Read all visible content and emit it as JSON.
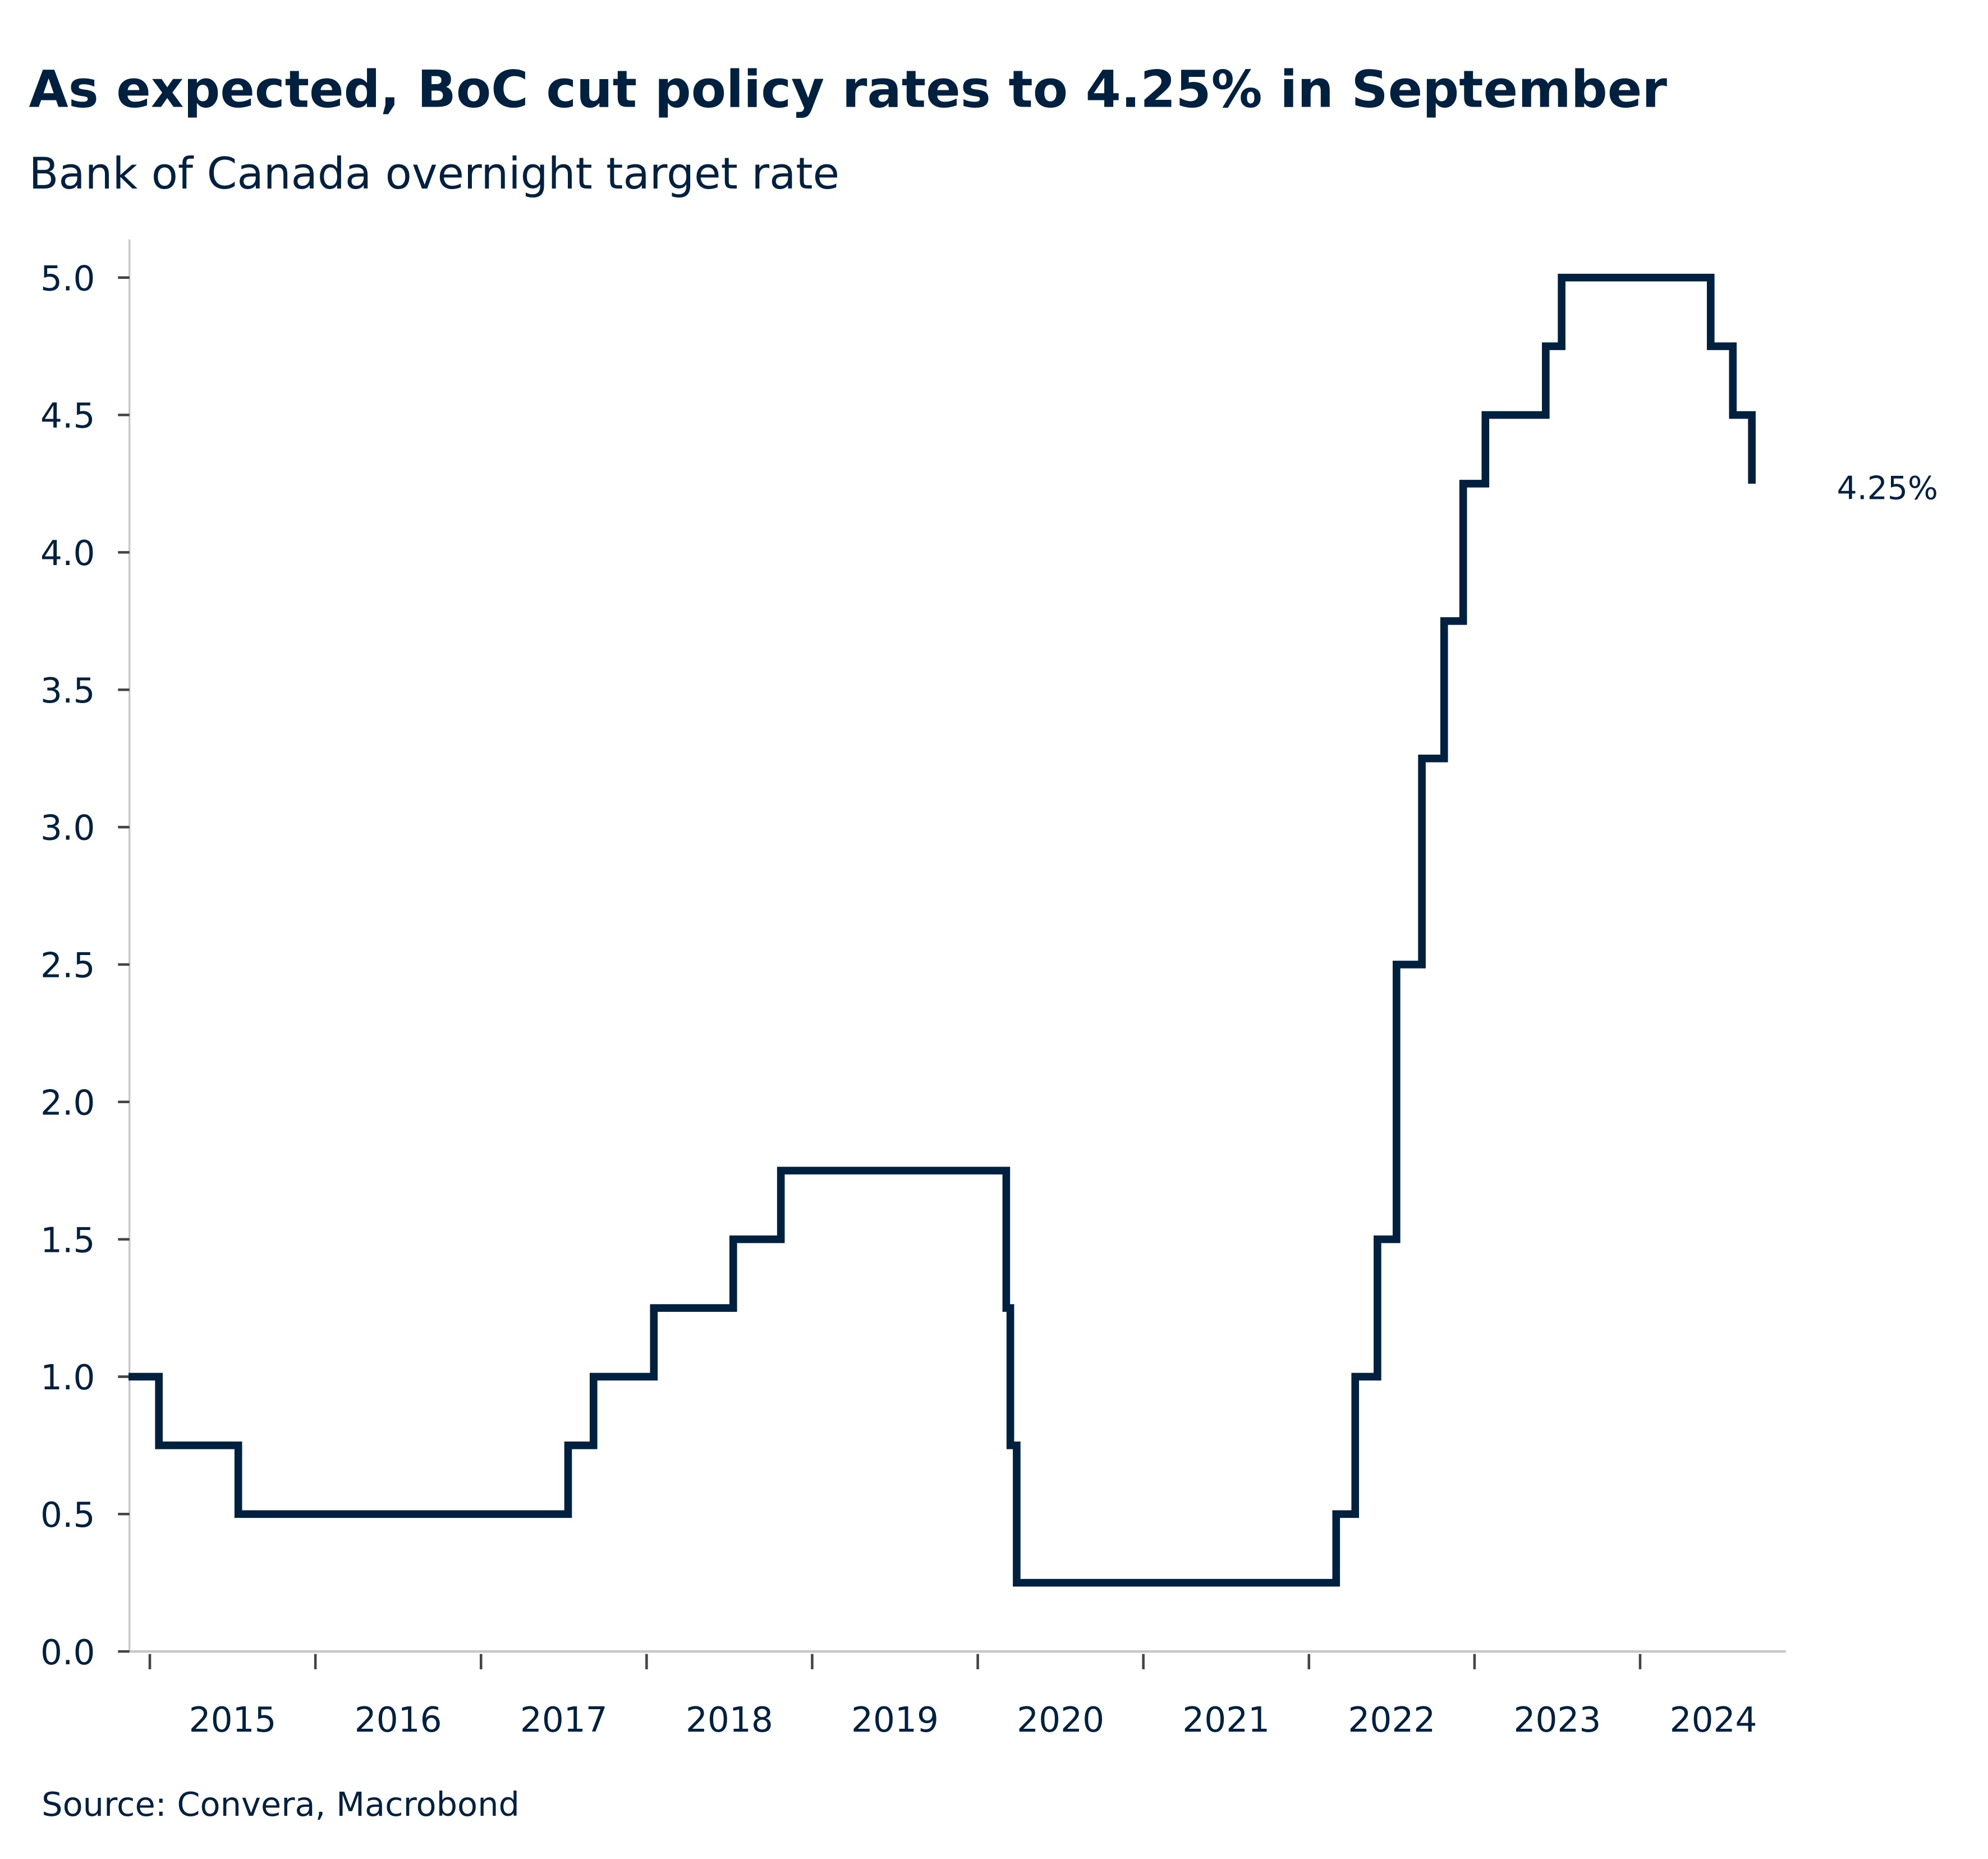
{
  "chart_data": {
    "type": "line",
    "style": "step",
    "title": "As expected, BoC cut policy rates to 4.25% in September",
    "subtitle": "Bank of Canada overnight target rate",
    "source": "Source: Convera, Macrobond",
    "xlabel": "",
    "ylabel": "",
    "ylim": [
      0,
      5
    ],
    "yticks": [
      "0.0",
      "0.5",
      "1.0",
      "1.5",
      "2.0",
      "2.5",
      "3.0",
      "3.5",
      "4.0",
      "4.5",
      "5.0"
    ],
    "xticks": [
      "2015",
      "2016",
      "2017",
      "2018",
      "2019",
      "2020",
      "2021",
      "2022",
      "2023",
      "2024"
    ],
    "grid": false,
    "line_color": "#00203f",
    "end_label": "4.25%",
    "series": [
      {
        "x": [
          "2014-11-15",
          "2015-01-21",
          "2015-07-15",
          "2017-07-12",
          "2017-09-06",
          "2018-01-17",
          "2018-07-11",
          "2018-10-24",
          "2020-03-04",
          "2020-03-13",
          "2020-03-27",
          "2022-03-02",
          "2022-04-13",
          "2022-06-01",
          "2022-07-13",
          "2022-09-07",
          "2022-10-26",
          "2022-12-07",
          "2023-01-25",
          "2023-06-07",
          "2023-07-12",
          "2024-06-05",
          "2024-07-24",
          "2024-09-04"
        ],
        "y": [
          1.0,
          0.75,
          0.5,
          0.75,
          1.0,
          1.25,
          1.5,
          1.75,
          1.25,
          0.75,
          0.25,
          0.5,
          1.0,
          1.5,
          2.5,
          3.25,
          3.75,
          4.25,
          4.5,
          4.75,
          5.0,
          4.75,
          4.5,
          4.25
        ]
      }
    ]
  }
}
